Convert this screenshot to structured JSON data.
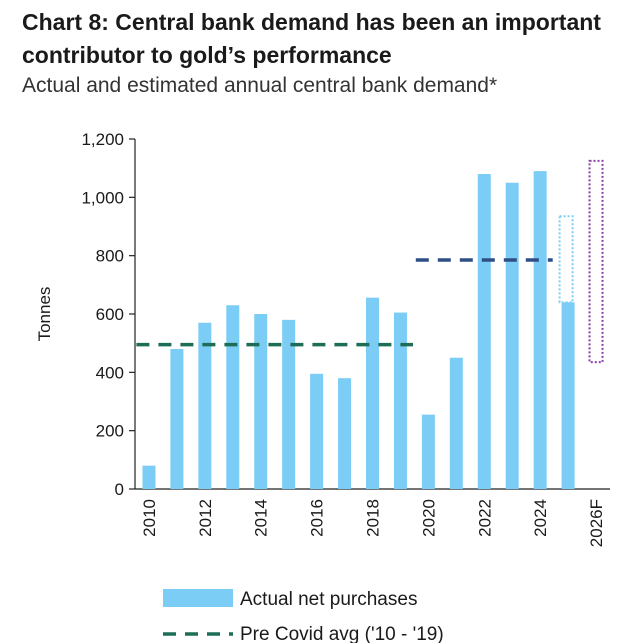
{
  "title": "Chart 8: Central bank demand has been an important contributor to gold’s performance",
  "subtitle": "Actual and estimated annual central bank demand*",
  "colors": {
    "bar": "#7ccdf5",
    "pre_covid_line": "#1e6e57",
    "recent_line": "#2e4f86",
    "estimate_2025": "#7ccdf5",
    "estimate_2026": "#8a3fa8",
    "axis": "#222222"
  },
  "chart_data": {
    "type": "bar",
    "ylabel": "Tonnes",
    "ylim": [
      0,
      1200
    ],
    "yticks": [
      0,
      200,
      400,
      600,
      800,
      1000,
      1200
    ],
    "ytick_labels": [
      "0",
      "200",
      "400",
      "600",
      "800",
      "1,000",
      "1,200"
    ],
    "categories": [
      "2010",
      "2011",
      "2012",
      "2013",
      "2014",
      "2015",
      "2016",
      "2017",
      "2018",
      "2019",
      "2020",
      "2021",
      "2022",
      "2023",
      "2024",
      "2025",
      "2026F"
    ],
    "xtick_labels": [
      {
        "index": 0,
        "label": "2010"
      },
      {
        "index": 2,
        "label": "2012"
      },
      {
        "index": 4,
        "label": "2014"
      },
      {
        "index": 6,
        "label": "2016"
      },
      {
        "index": 8,
        "label": "2018"
      },
      {
        "index": 10,
        "label": "2020"
      },
      {
        "index": 12,
        "label": "2022"
      },
      {
        "index": 14,
        "label": "2024"
      },
      {
        "index": 16,
        "label": "2026F"
      }
    ],
    "series": [
      {
        "name": "Actual net purchases",
        "values": [
          80,
          480,
          570,
          630,
          600,
          580,
          395,
          380,
          656,
          605,
          255,
          450,
          1080,
          1050,
          1090,
          640,
          null
        ]
      }
    ],
    "reference_lines": [
      {
        "name": "Pre Covid avg ('10 - '19)",
        "value": 495,
        "from_index": 0,
        "to_index": 9
      },
      {
        "name": "",
        "value": 785,
        "from_index": 10,
        "to_index": 14
      }
    ],
    "estimate_ranges": [
      {
        "index": 15,
        "low": 640,
        "high": 935
      },
      {
        "index": 16,
        "low": 435,
        "high": 1125
      }
    ],
    "legend": {
      "placement": "bottom",
      "entries": [
        "Actual net purchases",
        "Pre Covid avg ('10 - '19)"
      ]
    }
  }
}
